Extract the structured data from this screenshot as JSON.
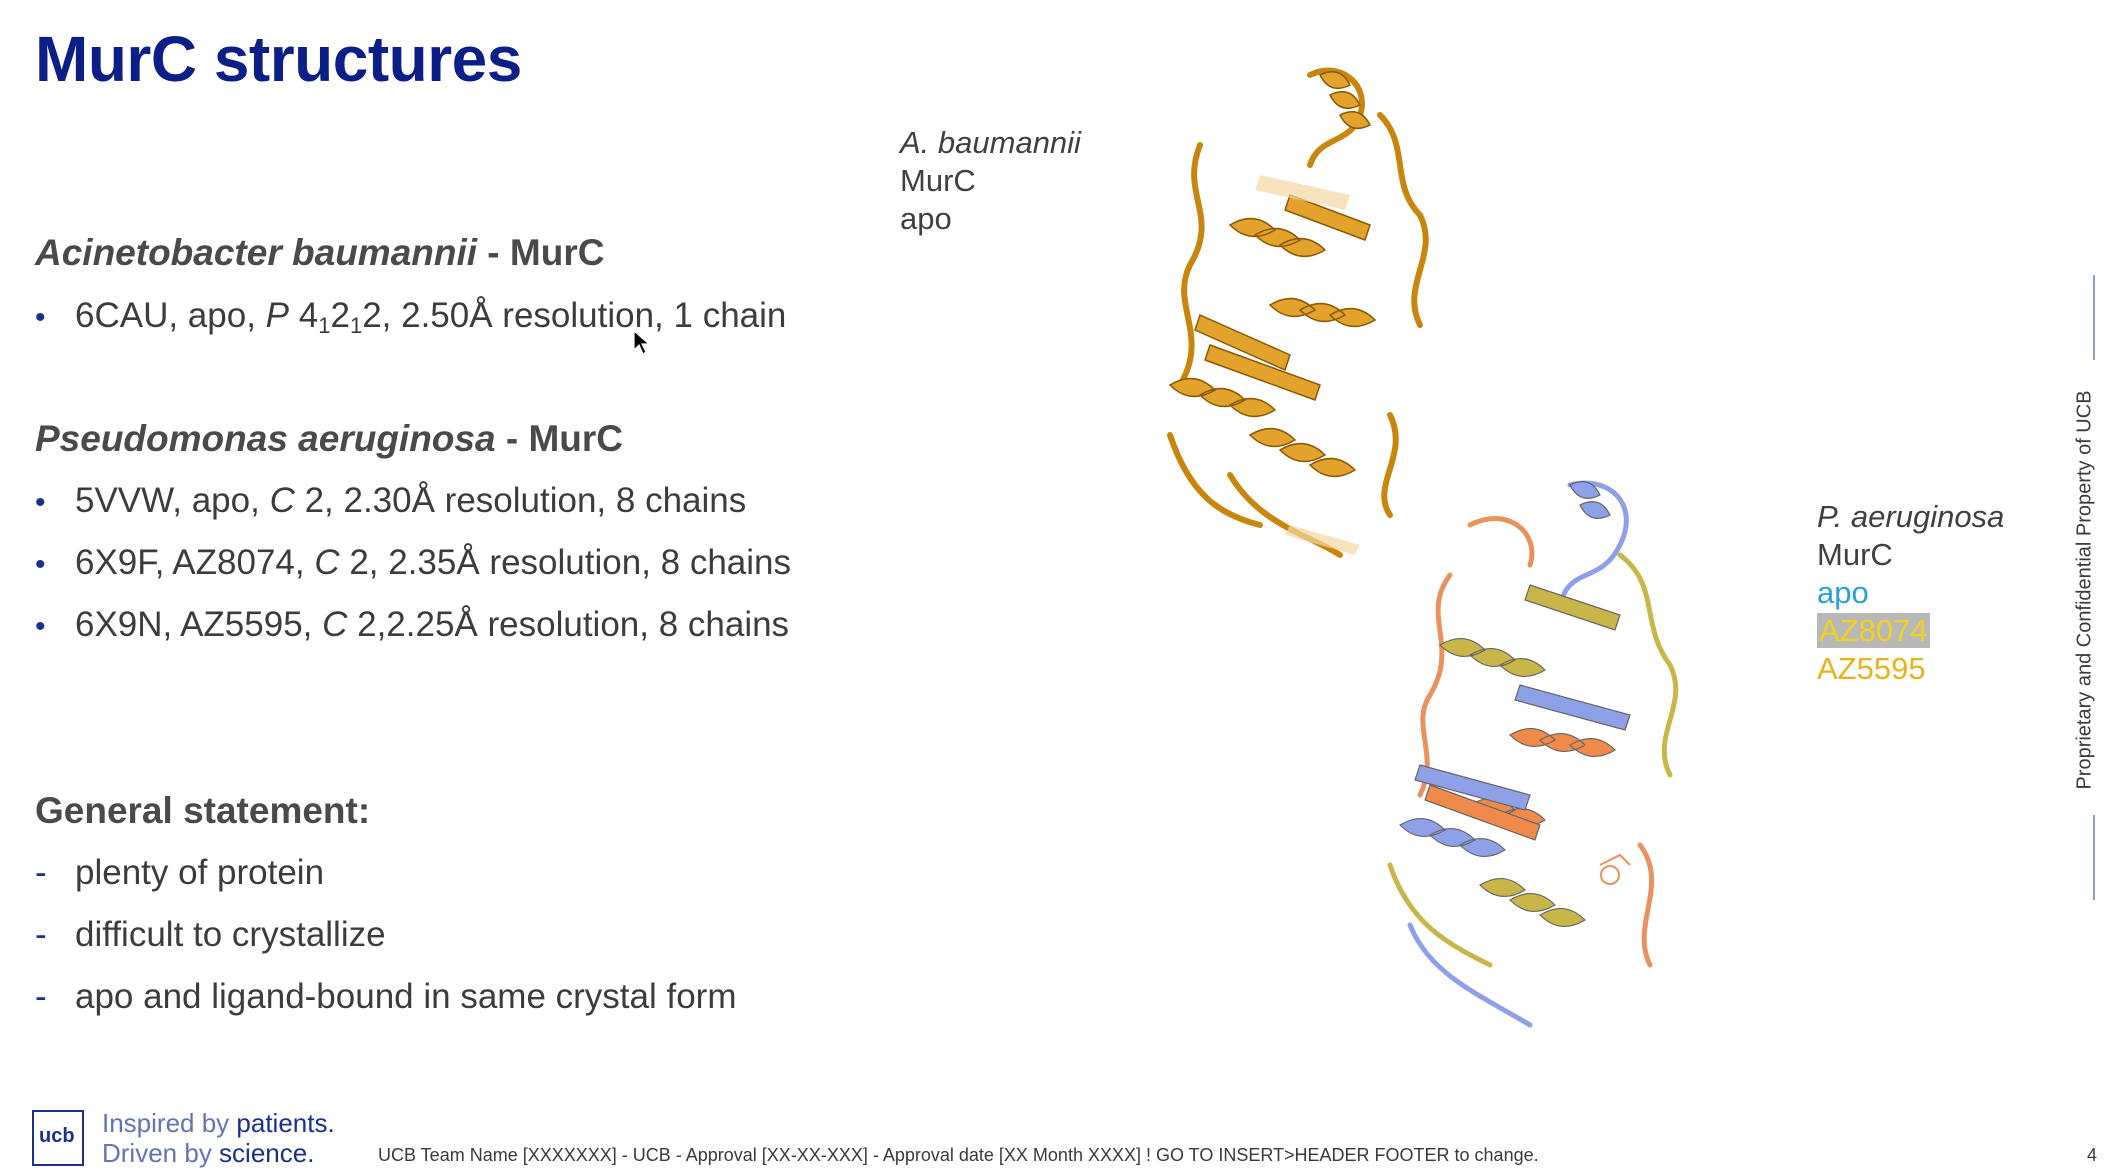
{
  "title": "MurC structures",
  "section1": {
    "organism": "Acinetobacter baumannii",
    "suffix": " - MurC"
  },
  "bullet1": {
    "pre": "6CAU, apo, ",
    "sg_p": "P",
    "sg_rest_a": " 4",
    "sub1": "1",
    "sg_rest_b": "2",
    "sub2": "1",
    "sg_rest_c": "2",
    "post": ", 2.50Å resolution, 1 chain"
  },
  "section2": {
    "organism": "Pseudomonas aeruginosa",
    "suffix": " - MurC"
  },
  "bullet2": {
    "pre": "5VVW, apo, ",
    "sg": "C",
    "post": " 2, 2.30Å resolution, 8 chains"
  },
  "bullet3": {
    "pre": "6X9F, AZ8074, ",
    "sg": "C",
    "post": " 2, 2.35Å resolution, 8 chains"
  },
  "bullet4": {
    "pre": "6X9N, AZ5595, ",
    "sg": "C",
    "post": " 2,2.25Å resolution, 8 chains"
  },
  "general": {
    "heading": "General statement:",
    "items": [
      "plenty of protein",
      "difficult to crystallize",
      "apo and ligand-bound in same crystal form"
    ]
  },
  "label_ab": {
    "organism": "A. baumannii",
    "protein": "MurC",
    "state": "apo"
  },
  "label_pa": {
    "organism": "P. aeruginosa",
    "protein": "MurC",
    "apo": "apo",
    "lig1": "AZ8074",
    "lig2": "AZ5595"
  },
  "side_text": "Proprietary and Confidential Property of UCB",
  "footer": "UCB Team Name [XXXXXXX] - UCB - Approval [XX-XX-XXX] - Approval date [XX Month XXXX] ! GO TO INSERT>HEADER FOOTER to change.",
  "page_number": "4",
  "logo": {
    "text": "ucb"
  },
  "tagline": {
    "line1_a": "Inspired by ",
    "line1_b": "patients.",
    "line2_a": "Driven by ",
    "line2_b": "science."
  },
  "colors": {
    "title": "#0b1f86",
    "apo_label": "#2aa0d8",
    "az8074_label": "#f2d21a",
    "az5595_label": "#e8b31a",
    "ab_structure": "#d89a1c"
  }
}
